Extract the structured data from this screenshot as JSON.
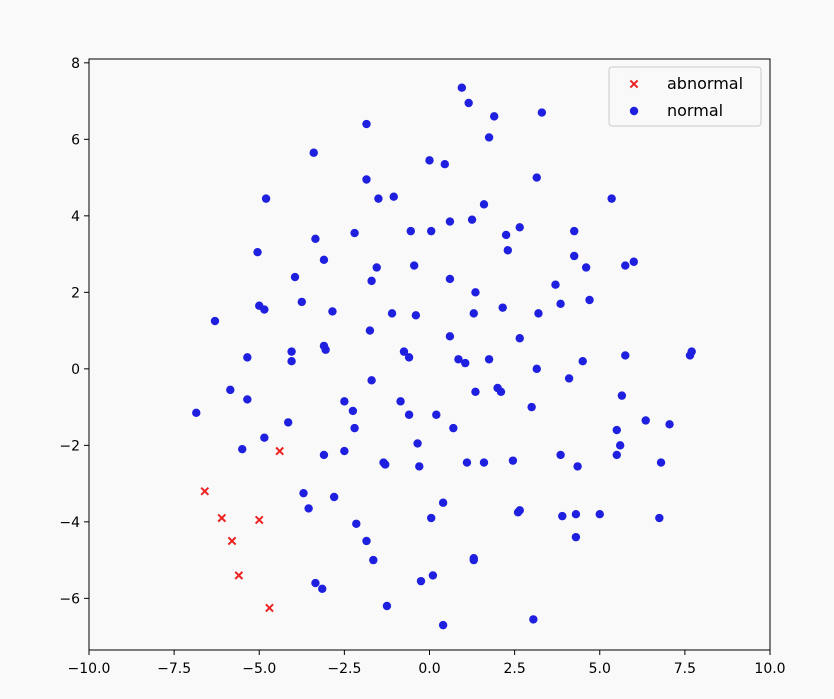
{
  "chart_data": {
    "type": "scatter",
    "title": "",
    "xlabel": "",
    "ylabel": "",
    "xlim": [
      -10,
      10
    ],
    "ylim": [
      -7.35,
      8.1
    ],
    "xticks": [
      -10.0,
      -7.5,
      -5.0,
      -2.5,
      0.0,
      2.5,
      5.0,
      7.5,
      10.0
    ],
    "xtick_labels": [
      "−10.0",
      "−7.5",
      "−5.0",
      "−2.5",
      "0.0",
      "2.5",
      "5.0",
      "7.5",
      "10.0"
    ],
    "yticks": [
      -6,
      -4,
      -2,
      0,
      2,
      4,
      6,
      8
    ],
    "ytick_labels": [
      "−6",
      "−4",
      "−2",
      "0",
      "2",
      "4",
      "6",
      "8"
    ],
    "grid": false,
    "legend_position": "top-right",
    "series": [
      {
        "name": "abnormal",
        "marker": "x",
        "color": "#ee2222",
        "points": [
          [
            -4.4,
            -2.15
          ],
          [
            -6.6,
            -3.2
          ],
          [
            -6.1,
            -3.9
          ],
          [
            -5.0,
            -3.95
          ],
          [
            -5.8,
            -4.5
          ],
          [
            -5.6,
            -5.4
          ],
          [
            -4.7,
            -6.25
          ]
        ]
      },
      {
        "name": "normal",
        "marker": "o",
        "color": "#1f1fe0",
        "points": [
          [
            0.95,
            7.35
          ],
          [
            1.15,
            6.95
          ],
          [
            1.9,
            6.6
          ],
          [
            3.3,
            6.7
          ],
          [
            -1.85,
            6.4
          ],
          [
            1.75,
            6.05
          ],
          [
            -3.4,
            5.65
          ],
          [
            0.0,
            5.45
          ],
          [
            0.45,
            5.35
          ],
          [
            -1.85,
            4.95
          ],
          [
            3.15,
            5.0
          ],
          [
            -1.5,
            4.45
          ],
          [
            -1.05,
            4.5
          ],
          [
            -4.8,
            4.45
          ],
          [
            1.6,
            4.3
          ],
          [
            5.35,
            4.45
          ],
          [
            0.6,
            3.85
          ],
          [
            1.25,
            3.9
          ],
          [
            -0.55,
            3.6
          ],
          [
            0.05,
            3.6
          ],
          [
            2.25,
            3.5
          ],
          [
            2.65,
            3.7
          ],
          [
            4.25,
            3.6
          ],
          [
            -3.35,
            3.4
          ],
          [
            -2.2,
            3.55
          ],
          [
            -5.05,
            3.05
          ],
          [
            -3.1,
            2.85
          ],
          [
            2.3,
            3.1
          ],
          [
            4.25,
            2.95
          ],
          [
            -1.55,
            2.65
          ],
          [
            -0.45,
            2.7
          ],
          [
            4.6,
            2.65
          ],
          [
            5.75,
            2.7
          ],
          [
            6.0,
            2.8
          ],
          [
            -3.95,
            2.4
          ],
          [
            -1.7,
            2.3
          ],
          [
            0.6,
            2.35
          ],
          [
            3.7,
            2.2
          ],
          [
            1.35,
            2.0
          ],
          [
            -3.75,
            1.75
          ],
          [
            -5.0,
            1.65
          ],
          [
            -4.85,
            1.55
          ],
          [
            -2.85,
            1.5
          ],
          [
            -1.1,
            1.45
          ],
          [
            -0.4,
            1.4
          ],
          [
            1.3,
            1.45
          ],
          [
            2.15,
            1.6
          ],
          [
            3.2,
            1.45
          ],
          [
            3.85,
            1.7
          ],
          [
            4.7,
            1.8
          ],
          [
            -6.3,
            1.25
          ],
          [
            -1.75,
            1.0
          ],
          [
            0.6,
            0.85
          ],
          [
            2.65,
            0.8
          ],
          [
            -4.05,
            0.45
          ],
          [
            -3.1,
            0.6
          ],
          [
            -3.05,
            0.5
          ],
          [
            -0.75,
            0.45
          ],
          [
            -0.6,
            0.3
          ],
          [
            0.85,
            0.25
          ],
          [
            1.05,
            0.15
          ],
          [
            1.75,
            0.25
          ],
          [
            -5.35,
            0.3
          ],
          [
            -4.05,
            0.2
          ],
          [
            3.15,
            0.0
          ],
          [
            4.5,
            0.2
          ],
          [
            5.75,
            0.35
          ],
          [
            7.65,
            0.35
          ],
          [
            7.7,
            0.45
          ],
          [
            -1.7,
            -0.3
          ],
          [
            4.1,
            -0.25
          ],
          [
            -5.85,
            -0.55
          ],
          [
            -5.35,
            -0.8
          ],
          [
            -2.5,
            -0.85
          ],
          [
            1.35,
            -0.6
          ],
          [
            2.0,
            -0.5
          ],
          [
            2.1,
            -0.6
          ],
          [
            5.65,
            -0.7
          ],
          [
            -0.85,
            -0.85
          ],
          [
            -6.85,
            -1.15
          ],
          [
            -2.25,
            -1.1
          ],
          [
            -0.6,
            -1.2
          ],
          [
            0.2,
            -1.2
          ],
          [
            3.0,
            -1.0
          ],
          [
            6.35,
            -1.35
          ],
          [
            7.05,
            -1.45
          ],
          [
            -4.15,
            -1.4
          ],
          [
            -2.2,
            -1.55
          ],
          [
            0.7,
            -1.55
          ],
          [
            5.5,
            -1.6
          ],
          [
            -4.85,
            -1.8
          ],
          [
            -0.35,
            -1.95
          ],
          [
            5.6,
            -2.0
          ],
          [
            -5.5,
            -2.1
          ],
          [
            -2.5,
            -2.15
          ],
          [
            -3.1,
            -2.25
          ],
          [
            3.85,
            -2.25
          ],
          [
            5.5,
            -2.25
          ],
          [
            -1.35,
            -2.45
          ],
          [
            -1.3,
            -2.5
          ],
          [
            -0.3,
            -2.55
          ],
          [
            1.1,
            -2.45
          ],
          [
            1.6,
            -2.45
          ],
          [
            2.45,
            -2.4
          ],
          [
            4.35,
            -2.55
          ],
          [
            6.8,
            -2.45
          ],
          [
            -3.7,
            -3.25
          ],
          [
            -2.8,
            -3.35
          ],
          [
            0.4,
            -3.5
          ],
          [
            -3.55,
            -3.65
          ],
          [
            2.65,
            -3.7
          ],
          [
            2.6,
            -3.75
          ],
          [
            3.9,
            -3.85
          ],
          [
            4.3,
            -3.8
          ],
          [
            5.0,
            -3.8
          ],
          [
            6.75,
            -3.9
          ],
          [
            0.05,
            -3.9
          ],
          [
            -2.15,
            -4.05
          ],
          [
            4.3,
            -4.4
          ],
          [
            -1.85,
            -4.5
          ],
          [
            1.3,
            -4.95
          ],
          [
            1.3,
            -5.0
          ],
          [
            -1.65,
            -5.0
          ],
          [
            0.1,
            -5.4
          ],
          [
            -0.25,
            -5.55
          ],
          [
            -3.35,
            -5.6
          ],
          [
            -3.15,
            -5.75
          ],
          [
            -1.25,
            -6.2
          ],
          [
            3.05,
            -6.55
          ],
          [
            0.4,
            -6.7
          ]
        ]
      }
    ]
  }
}
